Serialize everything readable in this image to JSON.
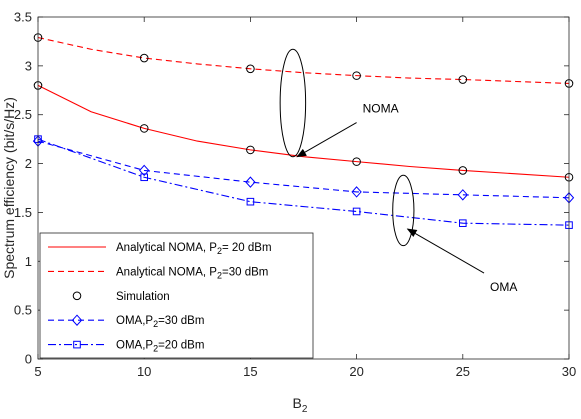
{
  "chart_data": {
    "type": "line",
    "xlabel": "B",
    "xlabel_sub": "2",
    "ylabel": "Spectrum efficiency (bit/s/Hz)",
    "xlim": [
      5,
      30
    ],
    "ylim": [
      0,
      3.5
    ],
    "x_ticks": [
      5,
      10,
      15,
      20,
      25,
      30
    ],
    "y_ticks": [
      0,
      0.5,
      1,
      1.5,
      2,
      2.5,
      3,
      3.5
    ],
    "x_tick_labels": [
      "5",
      "10",
      "15",
      "20",
      "25",
      "30"
    ],
    "y_tick_labels": [
      "0",
      "0.5",
      "1",
      "1.5",
      "2",
      "2.5",
      "3",
      "3.5"
    ],
    "grid": false,
    "legend_position": "bottom-left",
    "series": [
      {
        "name": "Analytical NOMA, P2= 20 dBm",
        "legend_text": "Analytical NOMA, P",
        "legend_sub": "2",
        "legend_tail": "= 20 dBm",
        "color": "#ff0000",
        "style": "solid",
        "marker": "none",
        "x": [
          5,
          7.5,
          10,
          12.5,
          15,
          17.5,
          20,
          22.5,
          25,
          27.5,
          30
        ],
        "y": [
          2.8,
          2.53,
          2.36,
          2.23,
          2.14,
          2.07,
          2.02,
          1.97,
          1.93,
          1.895,
          1.86
        ]
      },
      {
        "name": "Analytical NOMA, P2=30 dBm",
        "legend_text": "Analytical NOMA, P",
        "legend_sub": "2",
        "legend_tail": "=30 dBm",
        "color": "#ff0000",
        "style": "dashed",
        "marker": "none",
        "x": [
          5,
          7.5,
          10,
          12.5,
          15,
          17.5,
          20,
          22.5,
          25,
          27.5,
          30
        ],
        "y": [
          3.29,
          3.17,
          3.08,
          3.02,
          2.97,
          2.93,
          2.9,
          2.875,
          2.86,
          2.84,
          2.82
        ]
      },
      {
        "name": "Simulation",
        "legend_text": "Simulation",
        "legend_sub": "",
        "legend_tail": "",
        "color": "#000000",
        "style": "none",
        "marker": "circle",
        "x": [
          5,
          10,
          15,
          20,
          25,
          30,
          5,
          10,
          15,
          20,
          25,
          30
        ],
        "y": [
          2.8,
          2.36,
          2.14,
          2.02,
          1.93,
          1.86,
          3.29,
          3.08,
          2.97,
          2.9,
          2.86,
          2.82
        ]
      },
      {
        "name": "OMA,P2=30 dBm",
        "legend_text": "OMA,P",
        "legend_sub": "2",
        "legend_tail": "=30 dBm",
        "color": "#0000ff",
        "style": "dashed",
        "marker": "diamond",
        "x": [
          5,
          10,
          15,
          20,
          25,
          30
        ],
        "y": [
          2.23,
          1.93,
          1.81,
          1.71,
          1.68,
          1.65
        ]
      },
      {
        "name": "OMA,P2=20 dBm",
        "legend_text": "OMA,P",
        "legend_sub": "2",
        "legend_tail": "=20 dBm",
        "color": "#0000ff",
        "style": "dashdot",
        "marker": "square",
        "x": [
          5,
          10,
          15,
          20,
          25,
          30
        ],
        "y": [
          2.25,
          1.86,
          1.61,
          1.51,
          1.39,
          1.37
        ]
      }
    ],
    "annotations": [
      {
        "text": "NOMA",
        "ellipse_center": [
          17,
          2.62
        ],
        "ellipse_radius": [
          0.6,
          0.55
        ],
        "arrow_from": [
          20,
          2.42
        ],
        "arrow_to": [
          17.2,
          2.07
        ]
      },
      {
        "text": "OMA",
        "ellipse_center": [
          22.2,
          1.52
        ],
        "ellipse_radius": [
          0.5,
          0.36
        ],
        "arrow_from": [
          26,
          0.88
        ],
        "arrow_to": [
          22.4,
          1.33
        ]
      }
    ]
  }
}
